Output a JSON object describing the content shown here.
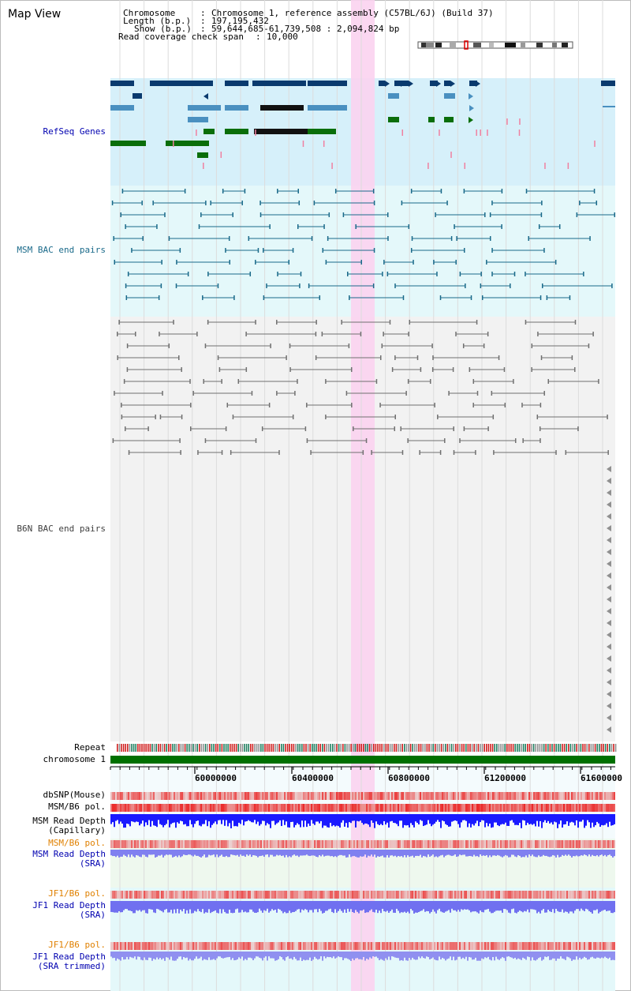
{
  "header": {
    "title": "Map View",
    "chromosome_key": "Chromosome",
    "chromosome_val": "Chromosome 1, reference assembly (C57BL/6J) (Build 37)",
    "length_key": "Length (b.p.)",
    "length_val": "197,195,432",
    "show_key": "Show (b.p.)",
    "show_val": "59,644,685-61,739,508 : 2,094,824 bp",
    "coverage_key": "Read coverage check span",
    "coverage_val": "10,000"
  },
  "tracks": {
    "refseq": "RefSeq Genes",
    "msm_bac": "MSM BAC end pairs",
    "b6n_bac": "B6N BAC end pairs",
    "repeat": "Repeat",
    "chromosome": "chromosome 1",
    "dbsnp": "dbSNP(Mouse)",
    "msm_b6_pol": "MSM/B6 pol.",
    "msm_read_depth_cap_1": "MSM Read Depth",
    "msm_read_depth_cap_2": "(Capillary)",
    "msm_b6_pol_sra": "MSM/B6 pol.",
    "msm_read_depth_sra_1": "MSM Read Depth",
    "msm_read_depth_sra_2": "(SRA)",
    "jf1_b6_pol": "JF1/B6 pol.",
    "jf1_read_depth_1": "JF1 Read Depth",
    "jf1_read_depth_2": "(SRA)",
    "jf1_b6_pol_2": "JF1/B6 pol.",
    "jf1_read_depth_trim_1": "JF1 Read Depth",
    "jf1_read_depth_trim_2": "(SRA trimmed)"
  },
  "axis": {
    "ticks": [
      "60000000",
      "60400000",
      "60800000",
      "61200000",
      "61600000"
    ]
  },
  "colors": {
    "refseq_bg": "#d6f0fa",
    "msm_bg": "#e4f8fa",
    "b6n_bg": "#f2f2f2",
    "highlight": "#fbd3f0",
    "chromosome_bar": "#007000",
    "navy": "#0a3a6e",
    "steel": "#4a90c0",
    "green": "#0a6e0a",
    "teal": "#1a6a8a",
    "gray": "#707070",
    "orange_label": "#e08000",
    "blue_label": "#0000b0"
  }
}
